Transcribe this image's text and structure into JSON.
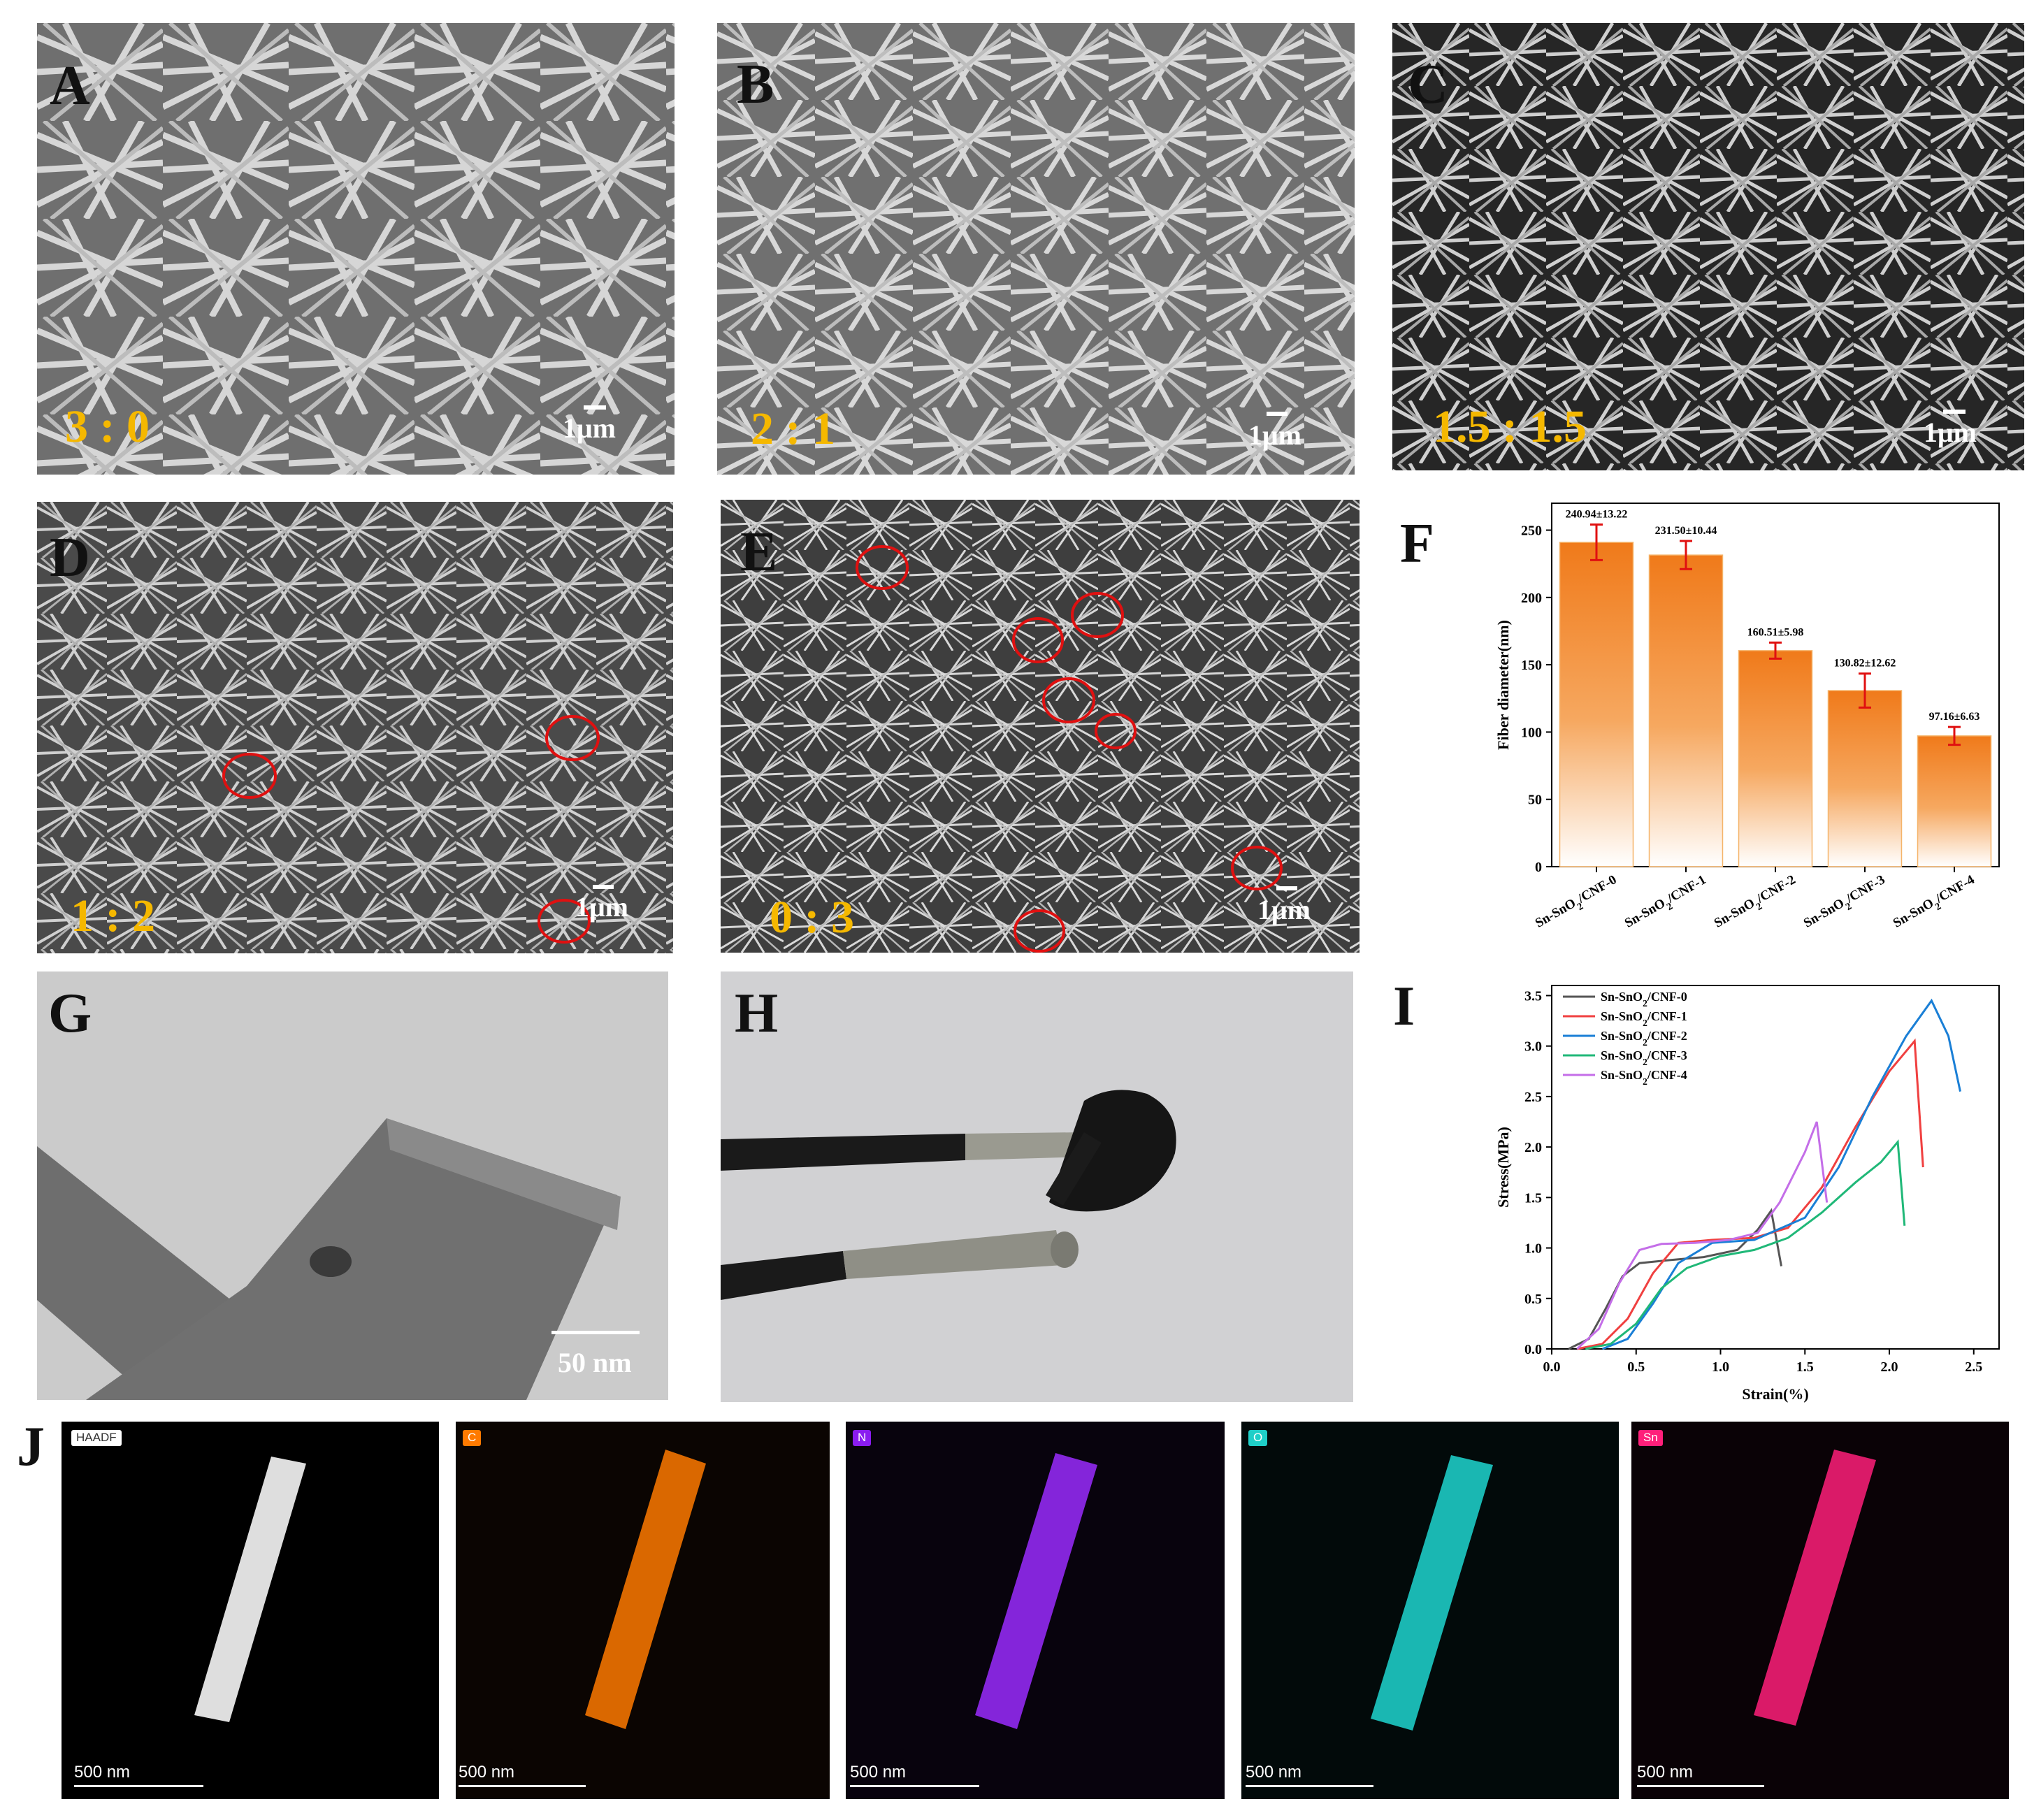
{
  "panels": {
    "A": {
      "letter": "A",
      "ratio": "3 : 0",
      "scale": "1μm"
    },
    "B": {
      "letter": "B",
      "ratio": "2 : 1",
      "scale": "1μm"
    },
    "C": {
      "letter": "C",
      "ratio": "1.5 : 1.5",
      "scale": "1μm"
    },
    "D": {
      "letter": "D",
      "ratio": "1 : 2",
      "scale": "1μm"
    },
    "E": {
      "letter": "E",
      "ratio": "0 : 3",
      "scale": "1μm"
    },
    "F": {
      "letter": "F"
    },
    "G": {
      "letter": "G",
      "scale": "50 nm"
    },
    "H": {
      "letter": "H"
    },
    "I": {
      "letter": "I"
    },
    "J": {
      "letter": "J"
    }
  },
  "eds_maps": [
    {
      "label": "HAADF",
      "scale": "500 nm",
      "color": "#e8e8e8",
      "label_bg": "#ffffff",
      "label_fg": "#333333"
    },
    {
      "label": "C",
      "scale": "500 nm",
      "color": "#ff7a00",
      "label_bg": "#ff7a00",
      "label_fg": "#ffffff"
    },
    {
      "label": "N",
      "scale": "500 nm",
      "color": "#9a2cff",
      "label_bg": "#8a1cf0",
      "label_fg": "#ffffff"
    },
    {
      "label": "O",
      "scale": "500 nm",
      "color": "#1fd6d0",
      "label_bg": "#1fcfc8",
      "label_fg": "#ffffff"
    },
    {
      "label": "Sn",
      "scale": "500 nm",
      "color": "#ff1f7a",
      "label_bg": "#ff1f7a",
      "label_fg": "#ffffff"
    }
  ],
  "chart_data": [
    {
      "type": "bar",
      "panel": "F",
      "ylabel": "Fiber diameter(nm)",
      "xlabel": "",
      "categories": [
        "Sn-SnO2/CNF-0",
        "Sn-SnO2/CNF-1",
        "Sn-SnO2/CNF-2",
        "Sn-SnO2/CNF-3",
        "Sn-SnO2/CNF-4"
      ],
      "values": [
        240.94,
        231.5,
        160.51,
        130.82,
        97.16
      ],
      "errors": [
        13.22,
        10.44,
        5.98,
        12.62,
        6.63
      ],
      "data_labels": [
        "240.94±13.22",
        "231.50±10.44",
        "160.51±5.98",
        "130.82±12.62",
        "97.16±6.63"
      ],
      "ylim": [
        0,
        270
      ],
      "yticks": [
        0,
        50,
        100,
        150,
        200,
        250
      ],
      "bar_color": "#f07a1a",
      "error_color": "#e01010"
    },
    {
      "type": "line",
      "panel": "I",
      "xlabel": "Strain(%)",
      "ylabel": "Stress(MPa)",
      "xlim": [
        0,
        2.65
      ],
      "ylim": [
        0,
        3.6
      ],
      "xticks": [
        0.0,
        0.5,
        1.0,
        1.5,
        2.0,
        2.5
      ],
      "xtick_labels": [
        "0.0",
        "0.5",
        "1.0",
        "1.5",
        "2.0",
        "2.5"
      ],
      "yticks": [
        0.0,
        0.5,
        1.0,
        1.5,
        2.0,
        2.5,
        3.0,
        3.5
      ],
      "ytick_labels": [
        "0.0",
        "0.5",
        "1.0",
        "1.5",
        "2.0",
        "2.5",
        "3.0",
        "3.5"
      ],
      "legend_position": "top-left",
      "series": [
        {
          "name": "Sn-SnO2/CNF-0",
          "color": "#555555",
          "x": [
            0.1,
            0.22,
            0.32,
            0.42,
            0.52,
            0.7,
            0.9,
            1.1,
            1.22,
            1.3,
            1.36
          ],
          "y": [
            0.0,
            0.1,
            0.4,
            0.72,
            0.85,
            0.88,
            0.91,
            0.98,
            1.18,
            1.37,
            0.82
          ]
        },
        {
          "name": "Sn-SnO2/CNF-1",
          "color": "#f04040",
          "x": [
            0.15,
            0.3,
            0.45,
            0.6,
            0.75,
            0.95,
            1.2,
            1.4,
            1.6,
            1.8,
            2.0,
            2.15,
            2.2
          ],
          "y": [
            0.0,
            0.05,
            0.3,
            0.75,
            1.05,
            1.08,
            1.1,
            1.2,
            1.6,
            2.2,
            2.75,
            3.05,
            1.8
          ]
        },
        {
          "name": "Sn-SnO2/CNF-2",
          "color": "#1a7fd6",
          "x": [
            0.3,
            0.45,
            0.6,
            0.75,
            0.95,
            1.2,
            1.5,
            1.7,
            1.9,
            2.1,
            2.25,
            2.35,
            2.42
          ],
          "y": [
            0.0,
            0.1,
            0.45,
            0.85,
            1.05,
            1.08,
            1.3,
            1.8,
            2.5,
            3.1,
            3.45,
            3.1,
            2.55
          ]
        },
        {
          "name": "Sn-SnO2/CNF-3",
          "color": "#20b878",
          "x": [
            0.2,
            0.35,
            0.5,
            0.65,
            0.8,
            1.0,
            1.2,
            1.4,
            1.6,
            1.8,
            1.95,
            2.05,
            2.09
          ],
          "y": [
            0.0,
            0.05,
            0.25,
            0.6,
            0.8,
            0.92,
            0.98,
            1.1,
            1.35,
            1.65,
            1.85,
            2.05,
            1.22
          ]
        },
        {
          "name": "Sn-SnO2/CNF-4",
          "color": "#c46ee8",
          "x": [
            0.15,
            0.28,
            0.4,
            0.52,
            0.65,
            0.85,
            1.05,
            1.22,
            1.35,
            1.5,
            1.57,
            1.63
          ],
          "y": [
            0.0,
            0.2,
            0.65,
            0.98,
            1.04,
            1.05,
            1.08,
            1.15,
            1.45,
            1.95,
            2.25,
            1.45
          ]
        }
      ]
    }
  ]
}
